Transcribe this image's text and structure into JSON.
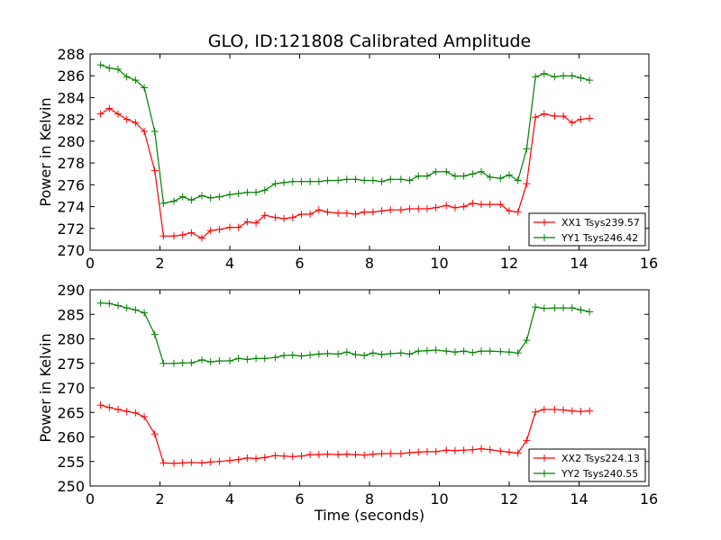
{
  "title": "GLO, ID:121808 Calibrated Amplitude",
  "chart_data": [
    {
      "type": "line",
      "title": "GLO, ID:121808 Calibrated Amplitude",
      "xlabel": "",
      "ylabel": "Power in Kelvin",
      "xlim": [
        0,
        16
      ],
      "ylim": [
        270,
        288
      ],
      "xticks": [
        "0",
        "2",
        "4",
        "6",
        "8",
        "10",
        "12",
        "14",
        "16"
      ],
      "yticks": [
        "270",
        "272",
        "274",
        "276",
        "278",
        "280",
        "282",
        "284",
        "286",
        "288"
      ],
      "grid": false,
      "legend_position": "lower-right",
      "x": [
        0.3,
        0.55,
        0.8,
        1.05,
        1.3,
        1.55,
        1.85,
        2.1,
        2.4,
        2.65,
        2.9,
        3.2,
        3.45,
        3.7,
        4.0,
        4.25,
        4.5,
        4.75,
        5.0,
        5.3,
        5.55,
        5.8,
        6.05,
        6.3,
        6.55,
        6.8,
        7.1,
        7.35,
        7.6,
        7.85,
        8.1,
        8.35,
        8.6,
        8.9,
        9.15,
        9.4,
        9.65,
        9.9,
        10.2,
        10.45,
        10.7,
        10.95,
        11.2,
        11.45,
        11.75,
        12.0,
        12.25,
        12.5,
        12.75,
        13.0,
        13.3,
        13.55,
        13.8,
        14.05,
        14.3
      ],
      "series": [
        {
          "name": "XX1 Tsys239.57",
          "color": "#ff0000",
          "values": [
            282.5,
            283.0,
            282.5,
            282.0,
            281.7,
            280.9,
            277.3,
            271.3,
            271.3,
            271.4,
            271.6,
            271.1,
            271.8,
            271.9,
            272.1,
            272.1,
            272.6,
            272.5,
            273.2,
            273.0,
            272.9,
            273.0,
            273.3,
            273.3,
            273.7,
            273.5,
            273.4,
            273.4,
            273.3,
            273.5,
            273.5,
            273.6,
            273.7,
            273.7,
            273.8,
            273.8,
            273.8,
            273.9,
            274.1,
            273.9,
            274.0,
            274.3,
            274.2,
            274.2,
            274.2,
            273.6,
            273.5,
            276.1,
            282.2,
            282.5,
            282.3,
            282.3,
            281.7,
            282.0,
            282.1
          ]
        },
        {
          "name": "YY1 Tsys246.42",
          "color": "#008000",
          "values": [
            287.0,
            286.7,
            286.6,
            285.9,
            285.6,
            284.9,
            280.9,
            274.3,
            274.5,
            274.9,
            274.6,
            275.0,
            274.8,
            274.9,
            275.1,
            275.2,
            275.3,
            275.3,
            275.5,
            276.1,
            276.2,
            276.3,
            276.3,
            276.3,
            276.3,
            276.4,
            276.4,
            276.5,
            276.5,
            276.4,
            276.4,
            276.3,
            276.5,
            276.5,
            276.4,
            276.8,
            276.8,
            277.2,
            277.2,
            276.8,
            276.8,
            277.0,
            277.2,
            276.7,
            276.6,
            276.9,
            276.4,
            279.3,
            285.9,
            286.2,
            285.9,
            286.0,
            286.0,
            285.8,
            285.6
          ]
        }
      ]
    },
    {
      "type": "line",
      "title": "",
      "xlabel": "Time (seconds)",
      "ylabel": "Power in Kelvin",
      "xlim": [
        0,
        16
      ],
      "ylim": [
        250,
        290
      ],
      "xticks": [
        "0",
        "2",
        "4",
        "6",
        "8",
        "10",
        "12",
        "14",
        "16"
      ],
      "yticks": [
        "250",
        "255",
        "260",
        "265",
        "270",
        "275",
        "280",
        "285",
        "290"
      ],
      "grid": false,
      "legend_position": "lower-right",
      "x": [
        0.3,
        0.55,
        0.8,
        1.05,
        1.3,
        1.55,
        1.85,
        2.1,
        2.4,
        2.65,
        2.9,
        3.2,
        3.45,
        3.7,
        4.0,
        4.25,
        4.5,
        4.75,
        5.0,
        5.3,
        5.55,
        5.8,
        6.05,
        6.3,
        6.55,
        6.8,
        7.1,
        7.35,
        7.6,
        7.85,
        8.1,
        8.35,
        8.6,
        8.9,
        9.15,
        9.4,
        9.65,
        9.9,
        10.2,
        10.45,
        10.7,
        10.95,
        11.2,
        11.45,
        11.75,
        12.0,
        12.25,
        12.5,
        12.75,
        13.0,
        13.3,
        13.55,
        13.8,
        14.05,
        14.3
      ],
      "series": [
        {
          "name": "XX2 Tsys224.13",
          "color": "#ff0000",
          "values": [
            266.5,
            266.0,
            265.6,
            265.2,
            264.9,
            264.1,
            260.6,
            254.7,
            254.6,
            254.7,
            254.8,
            254.7,
            254.9,
            255.0,
            255.2,
            255.4,
            255.7,
            255.6,
            255.8,
            256.2,
            256.1,
            256.0,
            256.1,
            256.4,
            256.4,
            256.5,
            256.4,
            256.5,
            256.4,
            256.3,
            256.5,
            256.6,
            256.6,
            256.6,
            256.8,
            256.9,
            257.0,
            257.0,
            257.3,
            257.2,
            257.3,
            257.4,
            257.6,
            257.4,
            257.1,
            256.9,
            256.7,
            259.3,
            265.1,
            265.6,
            265.6,
            265.5,
            265.3,
            265.2,
            265.3
          ]
        },
        {
          "name": "YY2 Tsys240.55",
          "color": "#008000",
          "values": [
            287.3,
            287.2,
            286.8,
            286.3,
            285.9,
            285.3,
            280.9,
            275.0,
            275.0,
            275.1,
            275.1,
            275.7,
            275.3,
            275.5,
            275.5,
            276.0,
            275.8,
            276.0,
            276.0,
            276.2,
            276.6,
            276.7,
            276.5,
            276.7,
            276.9,
            277.0,
            276.9,
            277.3,
            276.8,
            276.6,
            277.1,
            276.8,
            277.0,
            277.1,
            276.9,
            277.5,
            277.6,
            277.7,
            277.5,
            277.3,
            277.5,
            277.2,
            277.5,
            277.5,
            277.4,
            277.3,
            277.1,
            279.7,
            286.5,
            286.2,
            286.3,
            286.3,
            286.3,
            285.9,
            285.5
          ]
        }
      ]
    }
  ]
}
